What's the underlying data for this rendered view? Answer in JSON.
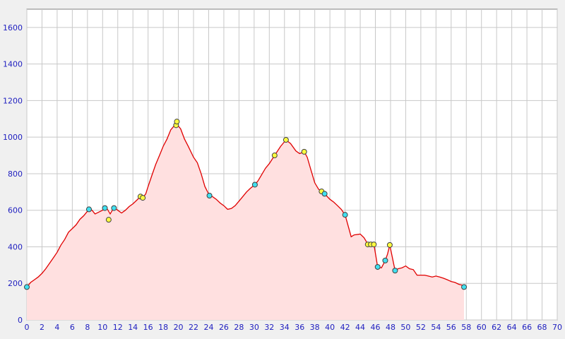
{
  "chart_data": {
    "type": "area",
    "title": "",
    "xlabel": "",
    "ylabel": "",
    "xlim": [
      0,
      70
    ],
    "ylim": [
      0,
      1700
    ],
    "x_ticks": [
      "0",
      "2",
      "4",
      "6",
      "8",
      "10",
      "12",
      "14",
      "16",
      "18",
      "20",
      "22",
      "24",
      "26",
      "28",
      "30",
      "32",
      "34",
      "36",
      "38",
      "40",
      "42",
      "44",
      "46",
      "48",
      "50",
      "52",
      "54",
      "56",
      "58",
      "60",
      "62",
      "64",
      "66",
      "68",
      "70"
    ],
    "y_ticks": [
      "0",
      "200",
      "400",
      "600",
      "800",
      "1000",
      "1200",
      "1400",
      "1600"
    ],
    "grid": true,
    "colors": {
      "line": "#e00000",
      "fill": "#ffe0e0",
      "cyan_marker": "#40e0f0",
      "yellow_marker": "#ffff40",
      "axis_text": "#2020c0",
      "grid": "#c8c8c8"
    },
    "series": [
      {
        "values": [
          [
            0,
            180
          ],
          [
            0.5,
            205
          ],
          [
            1,
            220
          ],
          [
            1.5,
            235
          ],
          [
            2,
            255
          ],
          [
            2.5,
            280
          ],
          [
            3,
            310
          ],
          [
            3.5,
            340
          ],
          [
            4,
            370
          ],
          [
            4.5,
            410
          ],
          [
            5,
            440
          ],
          [
            5.5,
            480
          ],
          [
            6,
            500
          ],
          [
            6.5,
            520
          ],
          [
            7,
            550
          ],
          [
            7.5,
            570
          ],
          [
            8.2,
            605
          ],
          [
            8.6,
            600
          ],
          [
            9,
            580
          ],
          [
            9.5,
            590
          ],
          [
            10,
            600
          ],
          [
            10.5,
            615
          ],
          [
            11,
            580
          ],
          [
            11.5,
            615
          ],
          [
            12,
            600
          ],
          [
            12.5,
            585
          ],
          [
            13,
            600
          ],
          [
            13.5,
            620
          ],
          [
            14,
            635
          ],
          [
            14.5,
            655
          ],
          [
            15,
            675
          ],
          [
            15.3,
            668
          ],
          [
            15.7,
            690
          ],
          [
            16,
            730
          ],
          [
            16.5,
            790
          ],
          [
            17,
            850
          ],
          [
            17.5,
            900
          ],
          [
            18,
            950
          ],
          [
            18.5,
            990
          ],
          [
            19,
            1040
          ],
          [
            19.5,
            1065
          ],
          [
            19.8,
            1085
          ],
          [
            20,
            1060
          ],
          [
            20.3,
            1045
          ],
          [
            20.8,
            990
          ],
          [
            21.3,
            950
          ],
          [
            22,
            890
          ],
          [
            22.5,
            860
          ],
          [
            23,
            800
          ],
          [
            23.5,
            730
          ],
          [
            24.1,
            680
          ],
          [
            24.5,
            675
          ],
          [
            25,
            660
          ],
          [
            25.5,
            640
          ],
          [
            26,
            625
          ],
          [
            26.5,
            605
          ],
          [
            27,
            610
          ],
          [
            27.5,
            625
          ],
          [
            28,
            650
          ],
          [
            28.5,
            675
          ],
          [
            29,
            700
          ],
          [
            29.5,
            720
          ],
          [
            30.1,
            740
          ],
          [
            30.5,
            760
          ],
          [
            31,
            795
          ],
          [
            31.5,
            830
          ],
          [
            32,
            855
          ],
          [
            32.7,
            900
          ],
          [
            33.5,
            950
          ],
          [
            34.2,
            985
          ],
          [
            34.8,
            965
          ],
          [
            35.5,
            925
          ],
          [
            36,
            910
          ],
          [
            36.6,
            920
          ],
          [
            37,
            890
          ],
          [
            37.5,
            820
          ],
          [
            38,
            750
          ],
          [
            38.5,
            715
          ],
          [
            38.9,
            705
          ],
          [
            39.3,
            690
          ],
          [
            40,
            660
          ],
          [
            40.5,
            645
          ],
          [
            41,
            625
          ],
          [
            41.5,
            605
          ],
          [
            42,
            575
          ],
          [
            42.5,
            500
          ],
          [
            42.8,
            455
          ],
          [
            43.2,
            465
          ],
          [
            44,
            470
          ],
          [
            44.5,
            450
          ],
          [
            45,
            415
          ],
          [
            45.4,
            415
          ],
          [
            45.8,
            415
          ],
          [
            46.3,
            290
          ],
          [
            46.8,
            285
          ],
          [
            47.3,
            325
          ],
          [
            47.6,
            360
          ],
          [
            47.9,
            410
          ],
          [
            48.2,
            350
          ],
          [
            48.6,
            270
          ],
          [
            49,
            280
          ],
          [
            49.5,
            285
          ],
          [
            50,
            295
          ],
          [
            50.5,
            280
          ],
          [
            51,
            275
          ],
          [
            51.5,
            245
          ],
          [
            52,
            245
          ],
          [
            52.5,
            245
          ],
          [
            53,
            240
          ],
          [
            53.5,
            235
          ],
          [
            54,
            240
          ],
          [
            54.5,
            235
          ],
          [
            55,
            228
          ],
          [
            55.5,
            220
          ],
          [
            56,
            210
          ],
          [
            56.5,
            205
          ],
          [
            57,
            195
          ],
          [
            57.5,
            190
          ],
          [
            57.7,
            180
          ]
        ]
      }
    ],
    "markers": [
      {
        "x": 0,
        "y": 180,
        "color": "cyan"
      },
      {
        "x": 8.2,
        "y": 605,
        "color": "cyan"
      },
      {
        "x": 10.3,
        "y": 612,
        "color": "cyan"
      },
      {
        "x": 10.8,
        "y": 548,
        "color": "yellow"
      },
      {
        "x": 11.5,
        "y": 612,
        "color": "cyan"
      },
      {
        "x": 15.0,
        "y": 675,
        "color": "yellow"
      },
      {
        "x": 15.3,
        "y": 668,
        "color": "yellow"
      },
      {
        "x": 19.7,
        "y": 1065,
        "color": "yellow"
      },
      {
        "x": 19.8,
        "y": 1085,
        "color": "yellow"
      },
      {
        "x": 24.1,
        "y": 680,
        "color": "cyan"
      },
      {
        "x": 30.1,
        "y": 740,
        "color": "cyan"
      },
      {
        "x": 32.7,
        "y": 900,
        "color": "yellow"
      },
      {
        "x": 34.2,
        "y": 985,
        "color": "yellow"
      },
      {
        "x": 36.6,
        "y": 920,
        "color": "yellow"
      },
      {
        "x": 38.9,
        "y": 703,
        "color": "yellow"
      },
      {
        "x": 39.3,
        "y": 690,
        "color": "cyan"
      },
      {
        "x": 42.0,
        "y": 575,
        "color": "cyan"
      },
      {
        "x": 45.0,
        "y": 413,
        "color": "yellow"
      },
      {
        "x": 45.4,
        "y": 413,
        "color": "yellow"
      },
      {
        "x": 45.8,
        "y": 413,
        "color": "yellow"
      },
      {
        "x": 46.3,
        "y": 290,
        "color": "cyan"
      },
      {
        "x": 47.3,
        "y": 325,
        "color": "cyan"
      },
      {
        "x": 47.9,
        "y": 410,
        "color": "yellow"
      },
      {
        "x": 48.6,
        "y": 270,
        "color": "cyan"
      },
      {
        "x": 57.7,
        "y": 180,
        "color": "cyan"
      }
    ]
  }
}
